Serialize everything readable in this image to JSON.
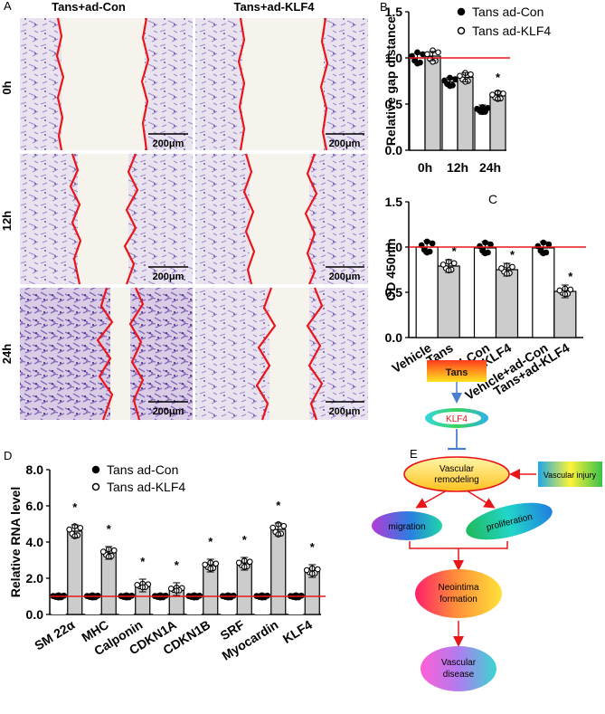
{
  "panels": {
    "A": {
      "letter": "A",
      "columns": [
        "Tans+ad-Con",
        "Tans+ad-KLF4"
      ],
      "rows": [
        "0h",
        "12h",
        "24h"
      ],
      "scale_bar": "200μm"
    },
    "E": {
      "letter": "E",
      "nodes": {
        "tans": "Tans",
        "klf4": "KLF4",
        "remodel_1": "Vascular",
        "remodel_2": "remodeling",
        "injury": "Vascular injury",
        "migration": "migration",
        "proliferation": "proliferation",
        "neo_1": "Neointima",
        "neo_2": "formation",
        "disease_1": "Vascular",
        "disease_2": "disease"
      }
    }
  },
  "colors": {
    "red_line": "#e8161b",
    "bar_fill_gray": "#cccccc",
    "stain": "#8a6bc0",
    "blue_arrow": "#4a7fd0"
  },
  "chart_data": [
    {
      "id": "B",
      "type": "bar",
      "letter": "B",
      "title": "",
      "ylabel": "Relative gap distance",
      "xlabel": "",
      "categories": [
        "0h",
        "12h",
        "24h"
      ],
      "series": [
        {
          "name": "Tans ad-Con",
          "values": [
            1.0,
            0.74,
            0.44
          ]
        },
        {
          "name": "Tans ad-KLF4",
          "values": [
            1.02,
            0.79,
            0.59
          ]
        }
      ],
      "ylim": [
        0.0,
        1.5
      ],
      "yticks": [
        "0.0",
        "0.5",
        "1.0",
        "1.5"
      ],
      "reference_line": 1.0,
      "significance": [
        {
          "category": "24h",
          "series": "Tans ad-KLF4",
          "mark": "*"
        }
      ]
    },
    {
      "id": "C",
      "type": "bar",
      "letter": "C",
      "title": "C",
      "ylabel": "OD 450nm",
      "xlabel": "",
      "categories": [
        "Vehicle",
        "Tans",
        "ad-Con",
        "ad-KLF4",
        "Vehicle+ad-Con",
        "Tans+ad-KLF4"
      ],
      "values": [
        1.0,
        0.79,
        0.99,
        0.75,
        0.99,
        0.51
      ],
      "ylim": [
        0.0,
        1.5
      ],
      "yticks": [
        "0.0",
        "0.5",
        "1.0",
        "1.5"
      ],
      "reference_line": 1.0,
      "significance": [
        "Tans",
        "ad-KLF4",
        "Tans+ad-KLF4"
      ]
    },
    {
      "id": "D",
      "type": "bar",
      "letter": "D",
      "title": "",
      "ylabel": "Relative RNA level",
      "xlabel": "",
      "categories": [
        "SM 22α",
        "MHC",
        "Calponin",
        "CDKN1A",
        "CDKN1B",
        "SRF",
        "Myocardin",
        "KLF4"
      ],
      "series": [
        {
          "name": "Tans ad-Con",
          "values": [
            1.0,
            1.0,
            1.0,
            1.0,
            1.0,
            1.0,
            1.0,
            1.0
          ]
        },
        {
          "name": "Tans ad-KLF4",
          "values": [
            4.6,
            3.4,
            1.6,
            1.4,
            2.7,
            2.8,
            4.7,
            2.4
          ]
        }
      ],
      "ylim": [
        0.0,
        8.0
      ],
      "yticks": [
        "0.0",
        "2.0",
        "4.0",
        "6.0",
        "8.0"
      ],
      "reference_line": 1.0,
      "significance": [
        "SM 22α",
        "MHC",
        "Calponin",
        "CDKN1A",
        "CDKN1B",
        "SRF",
        "Myocardin",
        "KLF4"
      ]
    }
  ]
}
